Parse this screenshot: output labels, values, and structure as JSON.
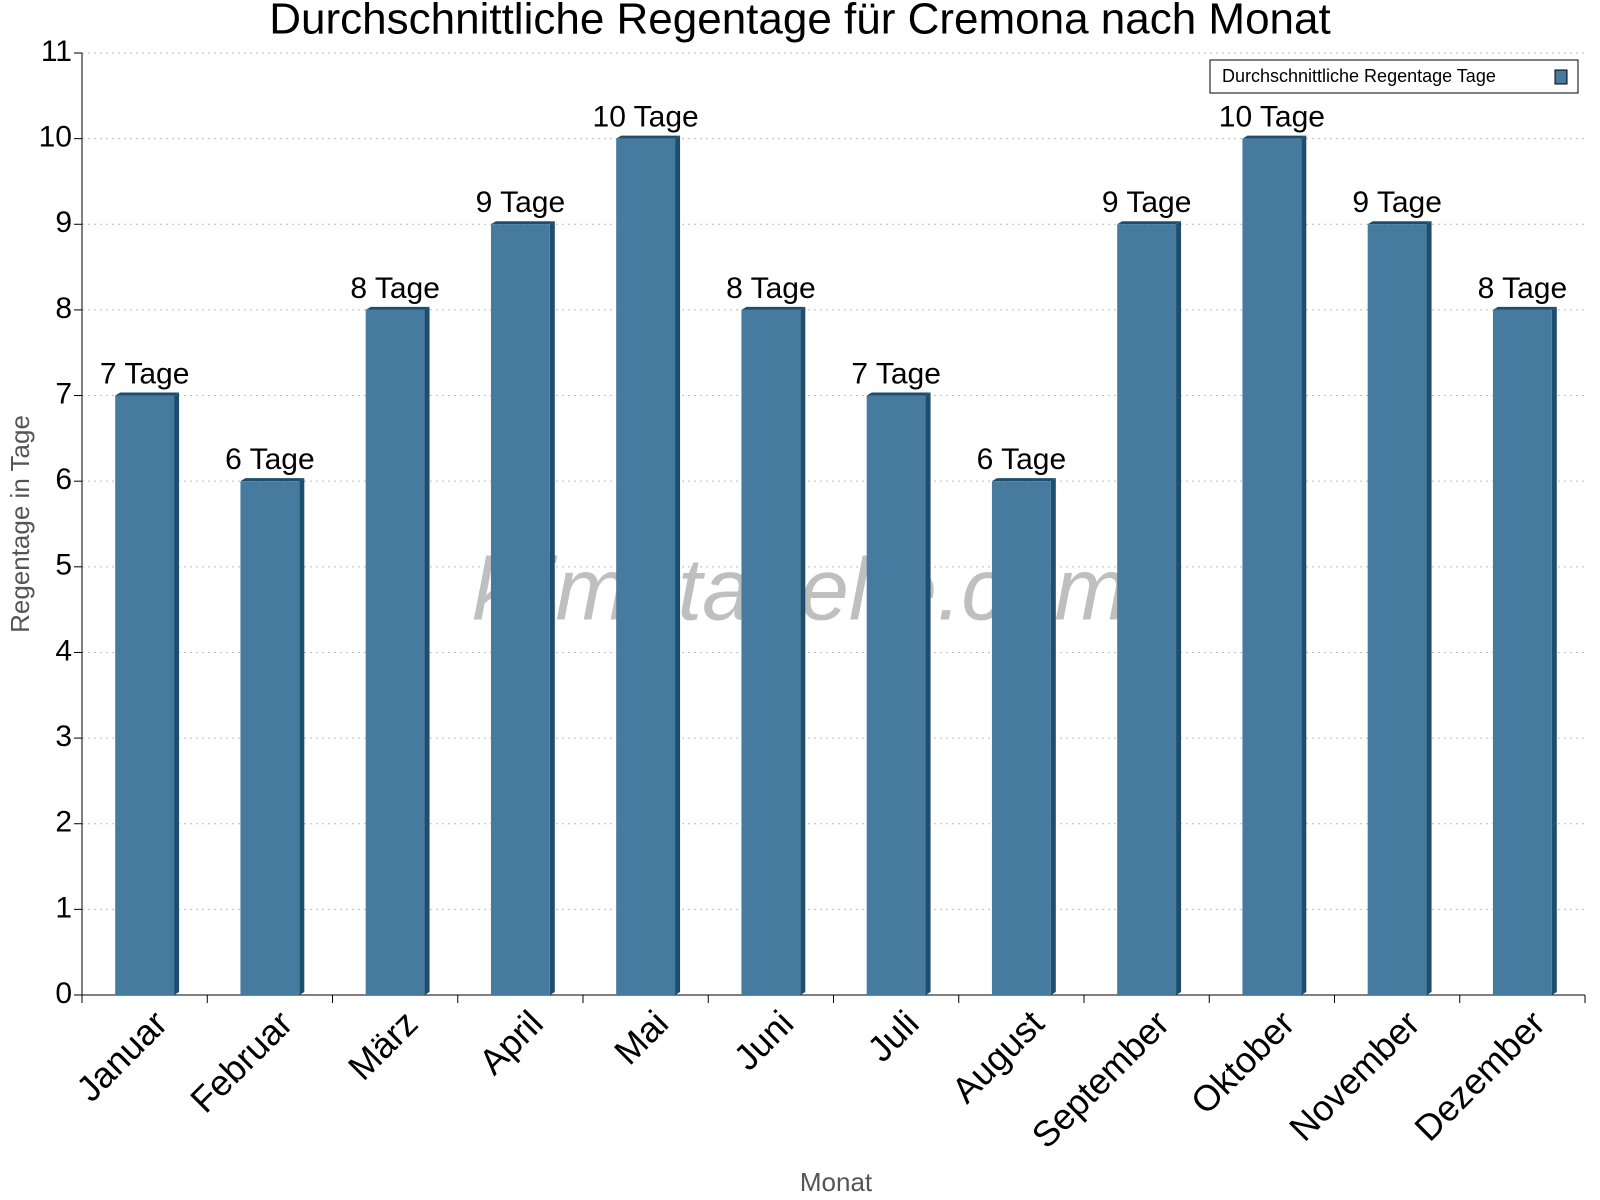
{
  "chart_data": {
    "type": "bar",
    "title": "Durchschnittliche Regentage für Cremona nach Monat",
    "x_label": "Monat",
    "y_label": "Regentage in Tage",
    "watermark": "klimatabelle.com",
    "categories": [
      "Januar",
      "Februar",
      "März",
      "April",
      "Mai",
      "Juni",
      "Juli",
      "August",
      "September",
      "Oktober",
      "November",
      "Dezember"
    ],
    "series": [
      {
        "name": "Durchschnittliche Regentage Tage",
        "color": "#467a9e",
        "values": [
          7,
          6,
          8,
          9,
          10,
          8,
          7,
          6,
          9,
          10,
          9,
          8
        ],
        "value_labels": [
          "7 Tage",
          "6 Tage",
          "8 Tage",
          "9 Tage",
          "10 Tage",
          "8 Tage",
          "7 Tage",
          "6 Tage",
          "9 Tage",
          "10 Tage",
          "9 Tage",
          "8 Tage"
        ]
      }
    ],
    "ylim": [
      0,
      11
    ],
    "yticks": [
      0,
      1,
      2,
      3,
      4,
      5,
      6,
      7,
      8,
      9,
      10,
      11
    ],
    "grid": true,
    "legend": "top-right"
  }
}
